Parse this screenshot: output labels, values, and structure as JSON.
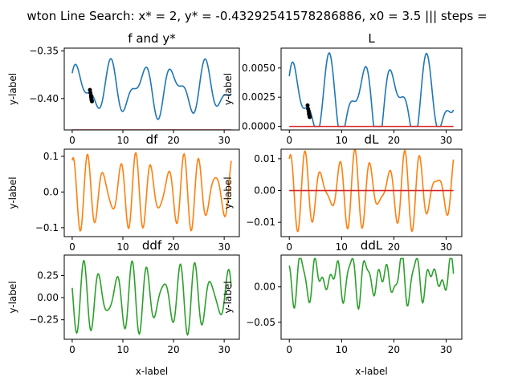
{
  "figure": {
    "suptitle": "wton Line Search: x* = 2, y* = -0.43292541578286886, x0 = 3.5 ||| steps ="
  },
  "colors": {
    "f": "#1f77b4",
    "df": "#ff7f0e",
    "ddf": "#2ca02c",
    "ystar": "#d62728",
    "steps": "#000000"
  },
  "chart_data": [
    {
      "id": "f",
      "type": "line",
      "title": "f and y*",
      "xlabel": "",
      "ylabel": "y-label",
      "xlim": [
        -1.57,
        32.99
      ],
      "ylim": [
        -0.433,
        -0.347
      ],
      "xticks": [
        0,
        10,
        20,
        30
      ],
      "xticklabels": [
        "0",
        "10",
        "20",
        "30"
      ],
      "yticks": [
        -0.35,
        -0.4
      ],
      "yticklabels": [
        "−0.35",
        "−0.40"
      ],
      "series": [
        {
          "kind": "curve",
          "color": "f",
          "x": [
            0,
            31.4
          ],
          "offset": -0.39,
          "amps": [
            0.02,
            0.012
          ],
          "freqs": [
            1.0,
            1.7
          ],
          "phases": [
            0.3,
            1.1
          ]
        },
        {
          "kind": "hline",
          "color": "ystar",
          "y": -0.433,
          "x": [
            0,
            31.4
          ]
        },
        {
          "kind": "points",
          "color": "steps",
          "x": [
            3.5,
            3.6,
            3.7,
            3.75,
            3.8,
            3.85,
            3.9
          ],
          "y": [
            -0.391,
            -0.394,
            -0.397,
            -0.399,
            -0.401,
            -0.402,
            -0.403
          ]
        }
      ]
    },
    {
      "id": "L",
      "type": "line",
      "title": "L",
      "xlabel": "",
      "ylabel": "y-label",
      "xlim": [
        -1.57,
        32.99
      ],
      "ylim": [
        -0.0003,
        0.0067
      ],
      "xticks": [
        0,
        10,
        20,
        30
      ],
      "xticklabels": [
        "0",
        "10",
        "20",
        "30"
      ],
      "yticks": [
        0.0,
        0.0025,
        0.005
      ],
      "yticklabels": [
        "0.0000",
        "0.0025",
        "0.0050"
      ],
      "series": [
        {
          "kind": "curve",
          "color": "f",
          "x": [
            0,
            31.4
          ],
          "offset": 0.0021,
          "amps": [
            0.0026,
            0.0016
          ],
          "freqs": [
            1.0,
            1.7
          ],
          "phases": [
            0.3,
            1.1
          ],
          "clipMin": 0
        },
        {
          "kind": "hline",
          "color": "ystar",
          "y": 0,
          "x": [
            0,
            31.4
          ]
        },
        {
          "kind": "points",
          "color": "steps",
          "x": [
            3.5,
            3.6,
            3.7,
            3.75,
            3.8,
            3.85,
            3.9
          ],
          "y": [
            0.0018,
            0.0015,
            0.0013,
            0.0011,
            0.001,
            0.0009,
            0.0008
          ]
        }
      ]
    },
    {
      "id": "df",
      "type": "line",
      "title": "df",
      "xlabel": "",
      "ylabel": "y-label",
      "xlim": [
        -1.57,
        32.99
      ],
      "ylim": [
        -0.125,
        0.12
      ],
      "xticks": [
        0,
        10,
        20,
        30
      ],
      "xticklabels": [
        "0",
        "10",
        "20",
        "30"
      ],
      "yticks": [
        -0.1,
        0.0,
        0.1
      ],
      "yticklabels": [
        "−0.1",
        "0.0",
        "0.1"
      ],
      "series": [
        {
          "kind": "curve",
          "color": "df",
          "x": [
            0,
            31.4
          ],
          "offset": 0,
          "amps": [
            0.075,
            0.035
          ],
          "freqs": [
            2.0,
            2.6
          ],
          "phases": [
            1.6,
            0.4
          ]
        }
      ]
    },
    {
      "id": "dL",
      "type": "line",
      "title": "dL",
      "xlabel": "",
      "ylabel": "y-label",
      "xlim": [
        -1.57,
        32.99
      ],
      "ylim": [
        -0.0145,
        0.013
      ],
      "xticks": [
        0,
        10,
        20,
        30
      ],
      "xticklabels": [
        "0",
        "10",
        "20",
        "30"
      ],
      "yticks": [
        -0.01,
        0.0,
        0.01
      ],
      "yticklabels": [
        "−0.01",
        "0.00",
        "0.01"
      ],
      "series": [
        {
          "kind": "curve",
          "color": "df",
          "x": [
            0,
            31.4
          ],
          "offset": 0,
          "amps": [
            0.008,
            0.005
          ],
          "freqs": [
            2.0,
            2.6
          ],
          "phases": [
            1.6,
            0.4
          ]
        },
        {
          "kind": "hline",
          "color": "ystar",
          "y": 0,
          "x": [
            0,
            31.4
          ]
        }
      ]
    },
    {
      "id": "ddf",
      "type": "line",
      "title": "ddf",
      "xlabel": "x-label",
      "ylabel": "y-label",
      "xlim": [
        -1.57,
        32.99
      ],
      "ylim": [
        -0.47,
        0.48
      ],
      "xticks": [
        0,
        10,
        20,
        30
      ],
      "xticklabels": [
        "0",
        "10",
        "20",
        "30"
      ],
      "yticks": [
        -0.25,
        0.0,
        0.25
      ],
      "yticklabels": [
        "−0.25",
        "0.00",
        "0.25"
      ],
      "series": [
        {
          "kind": "curve",
          "color": "ddf",
          "x": [
            0,
            31.4
          ],
          "offset": 0,
          "amps": [
            0.28,
            0.14
          ],
          "freqs": [
            2.0,
            2.6
          ],
          "phases": [
            3.2,
            2.0
          ]
        }
      ]
    },
    {
      "id": "ddL",
      "type": "line",
      "title": "ddL",
      "xlabel": "x-label",
      "ylabel": "y-label",
      "xlim": [
        -1.57,
        32.99
      ],
      "ylim": [
        -0.074,
        0.045
      ],
      "xticks": [
        0,
        10,
        20,
        30
      ],
      "xticklabels": [
        "0",
        "10",
        "20",
        "30"
      ],
      "yticks": [
        -0.05,
        0.0
      ],
      "yticklabels": [
        "−0.05",
        "0.00"
      ],
      "series": [
        {
          "kind": "curve",
          "color": "ddf",
          "x": [
            0,
            31.4
          ],
          "offset": 0.012,
          "amps": [
            0.02,
            0.014,
            0.01
          ],
          "freqs": [
            2.0,
            2.6,
            4.1
          ],
          "phases": [
            3.2,
            2.0,
            0.7
          ],
          "clipMax": 0.04
        }
      ]
    }
  ]
}
